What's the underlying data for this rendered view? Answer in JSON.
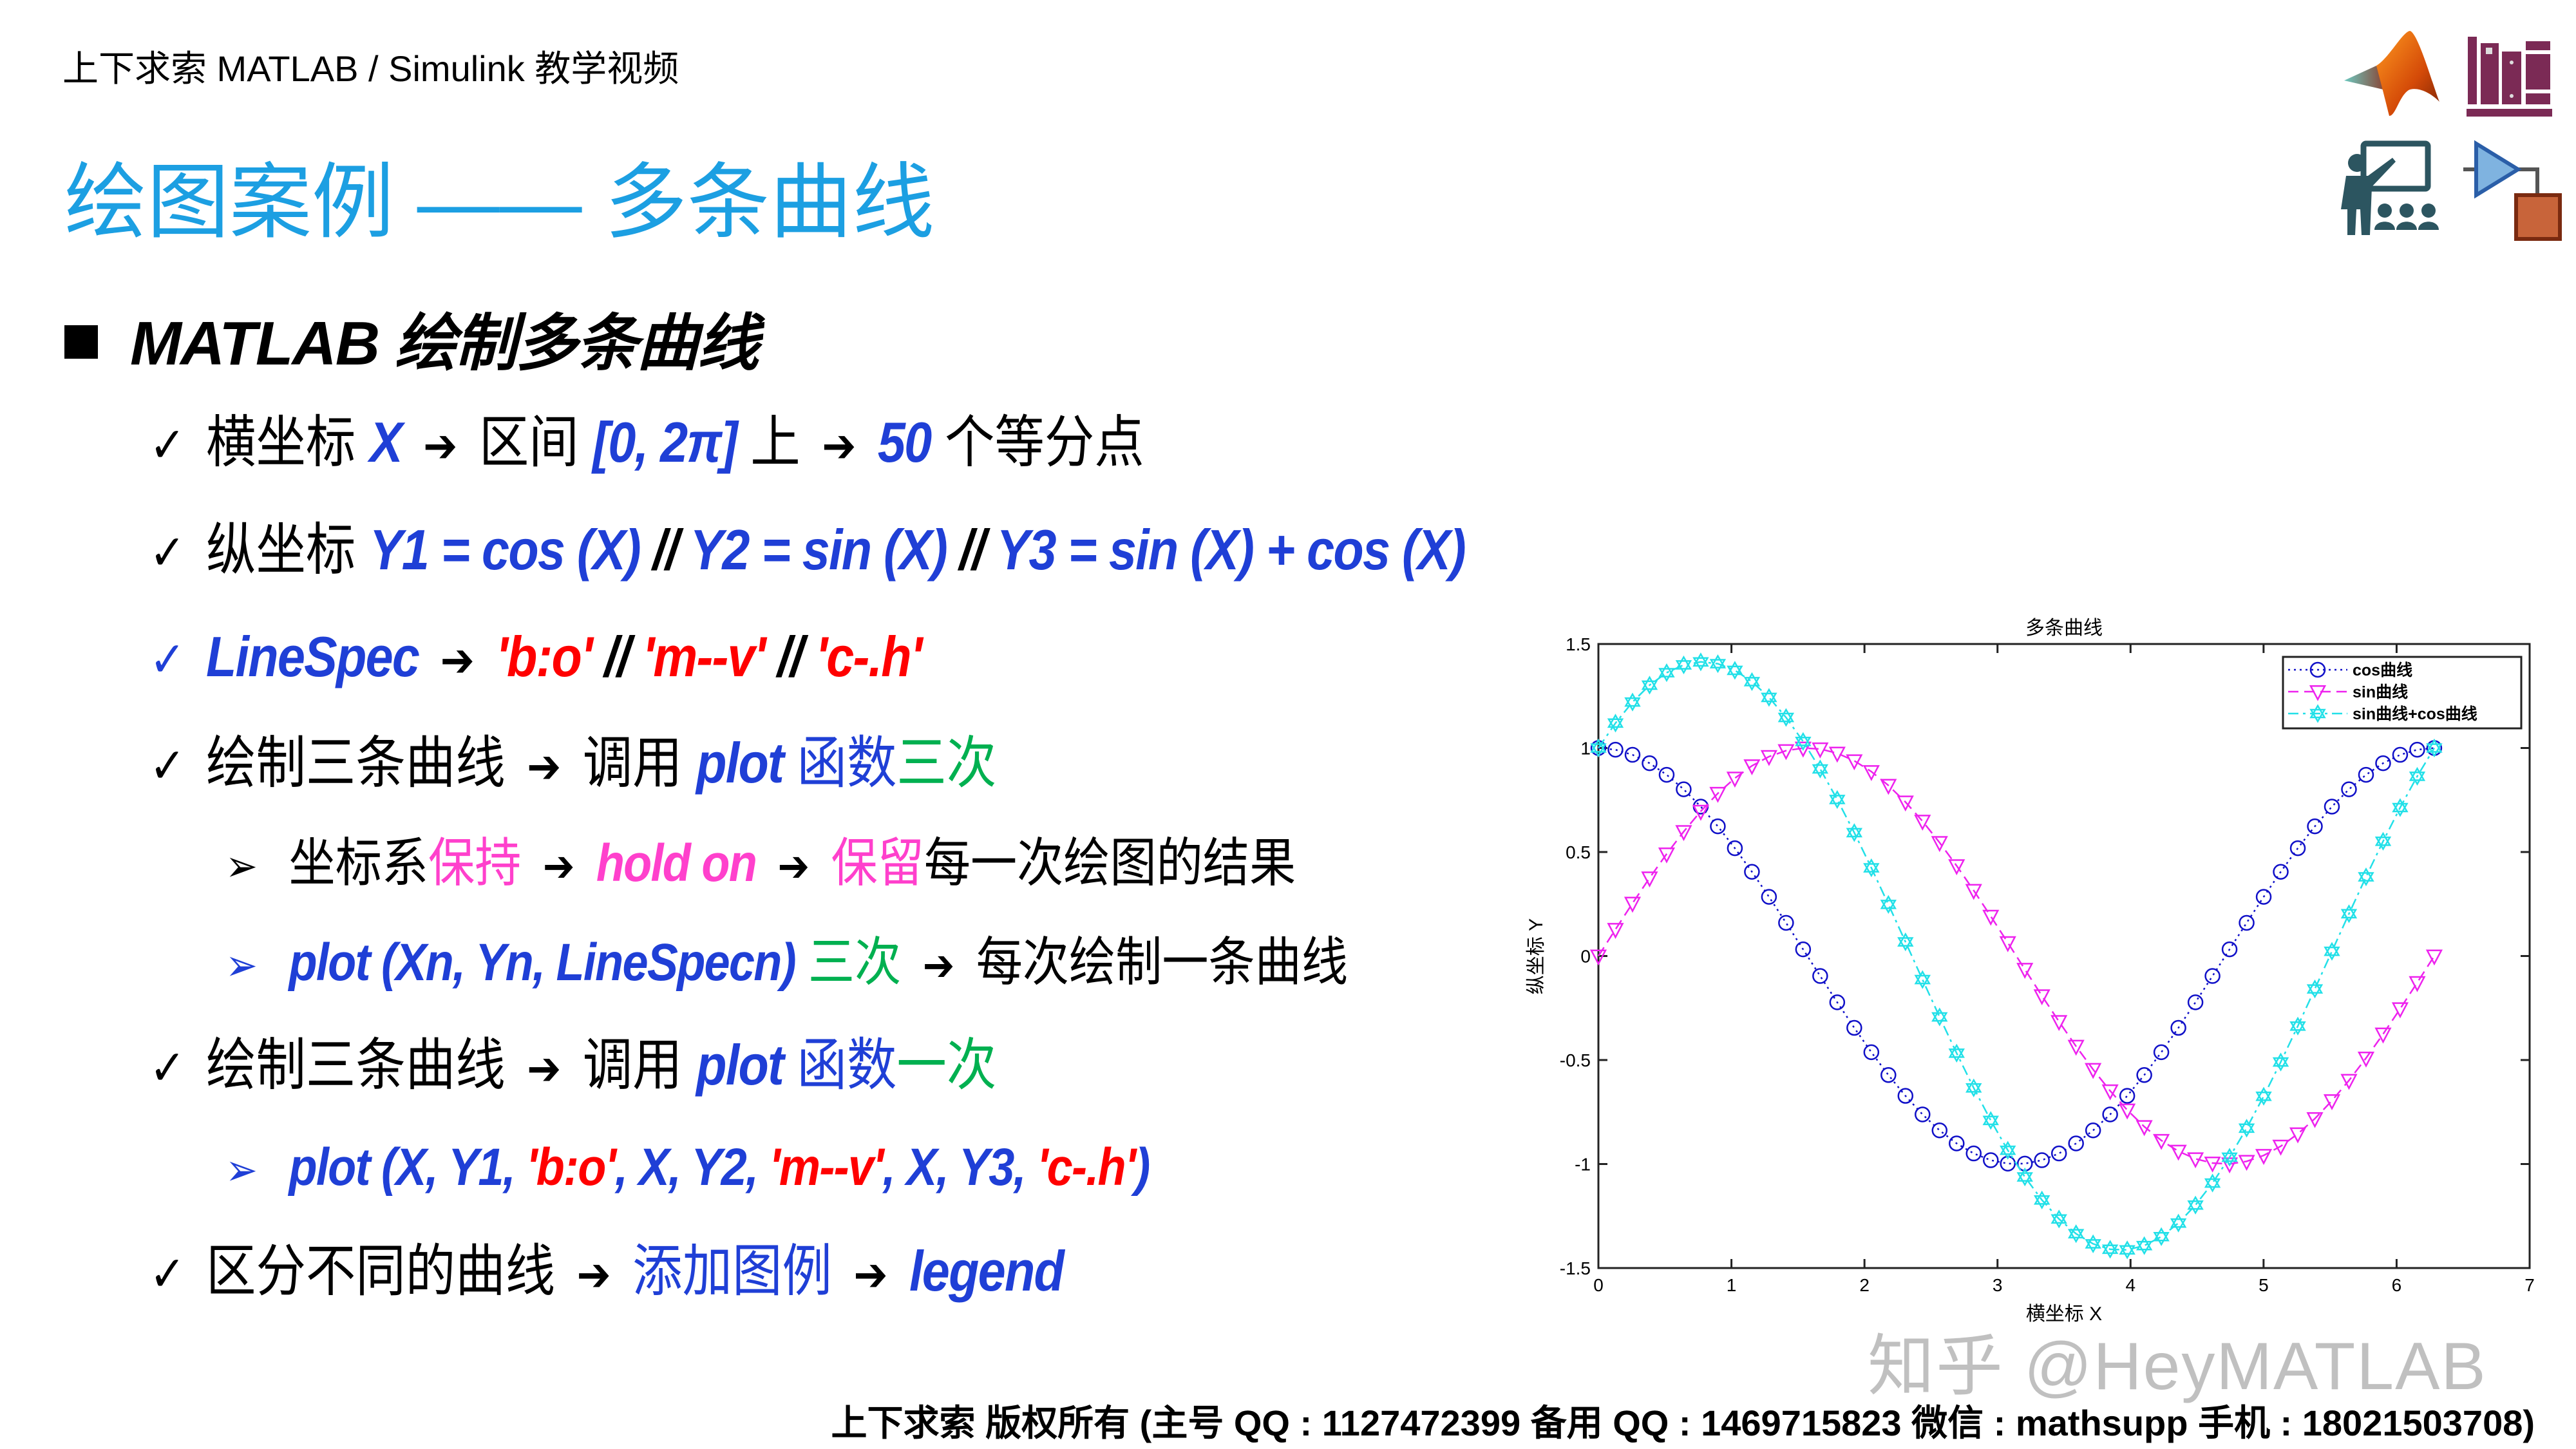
{
  "header": {
    "course": "上下求索 MATLAB / Simulink 教学视频"
  },
  "title": "绘图案例 —— 多条曲线",
  "section": {
    "heading": "MATLAB 绘制多条曲线"
  },
  "bullets": {
    "b1": {
      "t1": "横坐标 ",
      "t2": "X",
      "t3": "区间 ",
      "t4": "[0, 2π]",
      "t5": " 上",
      "t6": "50",
      "t7": " 个等分点"
    },
    "b2": {
      "t1": "纵坐标 ",
      "t2": "Y1 = cos (X)",
      "t3": " // ",
      "t4": "Y2 = sin (X)",
      "t5": " // ",
      "t6": "Y3 = sin (X) + cos (X)"
    },
    "b3": {
      "t1": "LineSpec",
      "t2": "'b:o'",
      "t3": " // ",
      "t4": "'m--v'",
      "t5": " // ",
      "t6": "'c-.h'"
    },
    "b4": {
      "t1": "绘制三条曲线",
      "t2": "调用 ",
      "t3": "plot",
      "t4": " 函数",
      "t5": "三次"
    },
    "s1": {
      "t1": "坐标系",
      "t2": "保持",
      "t3": "hold on",
      "t4": "保留",
      "t5": "每一次绘图的结果"
    },
    "s2": {
      "t1": "plot (Xn, Yn, LineSpecn)",
      "t2": " 三次",
      "t3": "每次绘制一条曲线"
    },
    "b5": {
      "t1": "绘制三条曲线",
      "t2": "调用 ",
      "t3": "plot",
      "t4": " 函数",
      "t5": "一次"
    },
    "s3": {
      "t1": "plot (X, Y1, ",
      "t2": "'b:o'",
      "t3": ", X, Y2, ",
      "t4": "'m--v'",
      "t5": ", X, Y3, ",
      "t6": "'c-.h'",
      "t7": ")"
    },
    "b6": {
      "t1": "区分不同的曲线",
      "t2": "添加图例",
      "t3": "legend"
    }
  },
  "footer": "上下求索 版权所有 (主号 QQ : 1127472399   备用 QQ : 1469715823   微信 : mathsupp   手机 : 18021503708)",
  "watermark": "知乎 @HeyMATLAB",
  "colors": {
    "title": "#1c9fe2",
    "code_blue": "#1f3fd6",
    "linespec_red": "#ff0000",
    "count_green": "#00b050",
    "hold_pink": "#ff40cc"
  },
  "icons": [
    "matlab-logo-icon",
    "bookshelf-icon",
    "teacher-icon",
    "simulink-block-icon"
  ],
  "chart_data": {
    "type": "line",
    "title": "多条曲线",
    "xlabel": "横坐标 X",
    "ylabel": "纵坐标 Y",
    "xlim": [
      0,
      7
    ],
    "ylim": [
      -1.5,
      1.5
    ],
    "xticks": [
      0,
      1,
      2,
      3,
      4,
      5,
      6,
      7
    ],
    "yticks": [
      -1.5,
      -1,
      -0.5,
      0,
      0.5,
      1,
      1.5
    ],
    "xtick_labels": [
      "0",
      "1",
      "2",
      "3",
      "4",
      "5",
      "6",
      "7"
    ],
    "ytick_labels": [
      "-1.5",
      "-1",
      "-0.5",
      "0",
      "0.5",
      "1",
      "1.5"
    ],
    "grid": false,
    "box": true,
    "legend_position": "top-right",
    "x": [
      0,
      0.1282,
      0.2565,
      0.3847,
      0.5129,
      0.6411,
      0.7694,
      0.8976,
      1.0258,
      1.1541,
      1.2823,
      1.4105,
      1.5387,
      1.667,
      1.7952,
      1.9234,
      2.0517,
      2.1799,
      2.3081,
      2.4363,
      2.5646,
      2.6928,
      2.821,
      2.9493,
      3.0775,
      3.2057,
      3.3339,
      3.4622,
      3.5904,
      3.7186,
      3.8468,
      3.9751,
      4.1033,
      4.2315,
      4.3598,
      4.488,
      4.6162,
      4.7444,
      4.8727,
      5.0009,
      5.1291,
      5.2574,
      5.3856,
      5.5138,
      5.642,
      5.7703,
      5.8985,
      6.0267,
      6.155,
      6.2832
    ],
    "series": [
      {
        "name": "cos曲线",
        "color": "#1010c8",
        "line": "dotted",
        "marker": "circle",
        "values": [
          1,
          0.9918,
          0.9673,
          0.9269,
          0.8713,
          0.8014,
          0.7183,
          0.6235,
          0.5183,
          0.4048,
          0.2845,
          0.1596,
          0.0321,
          -0.096,
          -0.2225,
          -0.3453,
          -0.4625,
          -0.5721,
          -0.6723,
          -0.7615,
          -0.8382,
          -0.901,
          -0.9491,
          -0.9816,
          -0.9979,
          -0.9979,
          -0.9816,
          -0.9491,
          -0.901,
          -0.8382,
          -0.7615,
          -0.6723,
          -0.5721,
          -0.4625,
          -0.3453,
          -0.2225,
          -0.096,
          0.0321,
          0.1596,
          0.2845,
          0.4048,
          0.5183,
          0.6235,
          0.7183,
          0.8014,
          0.8713,
          0.9269,
          0.9673,
          0.9918,
          1
        ]
      },
      {
        "name": "sin曲线",
        "color": "#ee22ee",
        "line": "dashed",
        "marker": "triangle-down",
        "values": [
          0,
          0.1279,
          0.2537,
          0.3753,
          0.4907,
          0.5981,
          0.6957,
          0.7818,
          0.8551,
          0.9144,
          0.9587,
          0.9872,
          0.9995,
          0.9954,
          0.9749,
          0.9385,
          0.8866,
          0.8202,
          0.7403,
          0.6482,
          0.5454,
          0.4339,
          0.3151,
          0.1912,
          0.0641,
          -0.0641,
          -0.1912,
          -0.3151,
          -0.4339,
          -0.5454,
          -0.6482,
          -0.7403,
          -0.8202,
          -0.8866,
          -0.9385,
          -0.9749,
          -0.9954,
          -0.9995,
          -0.9872,
          -0.9587,
          -0.9144,
          -0.8551,
          -0.7818,
          -0.6957,
          -0.5981,
          -0.4907,
          -0.3753,
          -0.2537,
          -0.1279,
          0
        ]
      },
      {
        "name": "sin曲线+cos曲线",
        "color": "#22e0e8",
        "line": "dashdot",
        "marker": "hexagram",
        "values": [
          1,
          1.1197,
          1.221,
          1.3022,
          1.362,
          1.3995,
          1.414,
          1.4053,
          1.3734,
          1.3192,
          1.2432,
          1.1468,
          1.0316,
          0.8994,
          0.7524,
          0.5932,
          0.4241,
          0.2481,
          0.068,
          -0.1133,
          -0.2928,
          -0.4671,
          -0.634,
          -0.7904,
          -0.9338,
          -1.062,
          -1.1728,
          -1.2642,
          -1.3349,
          -1.3836,
          -1.4097,
          -1.4126,
          -1.3923,
          -1.3491,
          -1.2838,
          -1.1974,
          -1.0914,
          -0.9674,
          -0.8276,
          -0.6742,
          -0.5096,
          -0.3368,
          -0.1583,
          0.0226,
          0.2033,
          0.3806,
          0.5516,
          0.7136,
          0.8639,
          1
        ]
      }
    ]
  }
}
